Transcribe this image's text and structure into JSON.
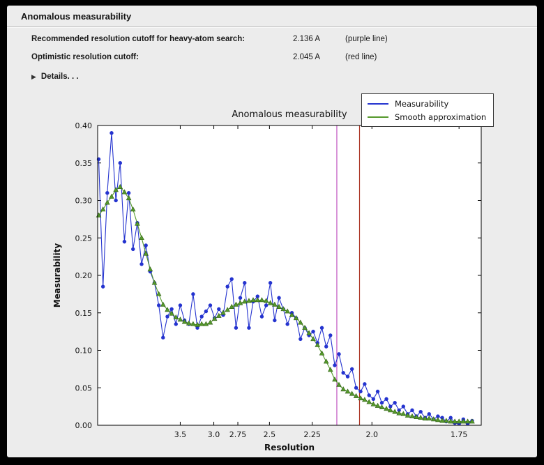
{
  "window": {
    "title": "Anomalous measurability"
  },
  "info": {
    "rows": [
      {
        "label": "Recommended resolution cutoff for heavy-atom search:",
        "value": "2.136 A",
        "note": "(purple line)"
      },
      {
        "label": "Optimistic resolution cutoff:",
        "value": "2.045 A",
        "note": "(red line)"
      }
    ],
    "details_label": "Details. . ."
  },
  "chart_data": {
    "type": "line",
    "title": "Anomalous measurability",
    "xlabel": "Resolution",
    "ylabel": "Measurability",
    "x_scale": "inverse-d-squared",
    "x_range_angstrom": [
      10.5,
      1.7
    ],
    "ylim": [
      0.0,
      0.4
    ],
    "grid": false,
    "legend_position": "upper right outside",
    "x_ticks": [
      3.5,
      3.0,
      2.75,
      2.5,
      2.25,
      2.0,
      1.75
    ],
    "x_tick_labels": [
      "3.5",
      "3.0",
      "2.75",
      "2.5",
      "2.25",
      "2.0",
      "1.75"
    ],
    "y_ticks": [
      0.0,
      0.05,
      0.1,
      0.15,
      0.2,
      0.25,
      0.3,
      0.35,
      0.4
    ],
    "y_tick_labels": [
      "0.00",
      "0.05",
      "0.10",
      "0.15",
      "0.20",
      "0.25",
      "0.30",
      "0.35",
      "0.40"
    ],
    "x_angstrom": [
      10.0,
      8.522,
      7.551,
      6.85,
      6.314,
      5.887,
      5.537,
      5.242,
      4.99,
      4.771,
      4.579,
      4.408,
      4.255,
      4.117,
      3.991,
      3.877,
      3.771,
      3.674,
      3.584,
      3.5,
      3.422,
      3.349,
      3.28,
      3.216,
      3.155,
      3.097,
      3.043,
      2.991,
      2.942,
      2.895,
      2.85,
      2.808,
      2.767,
      2.728,
      2.69,
      2.654,
      2.62,
      2.586,
      2.554,
      2.523,
      2.494,
      2.465,
      2.437,
      2.41,
      2.385,
      2.359,
      2.335,
      2.311,
      2.288,
      2.266,
      2.245,
      2.224,
      2.203,
      2.183,
      2.164,
      2.145,
      2.127,
      2.109,
      2.091,
      2.074,
      2.058,
      2.041,
      2.026,
      2.01,
      1.995,
      1.98,
      1.966,
      1.951,
      1.938,
      1.924,
      1.911,
      1.898,
      1.885,
      1.872,
      1.86,
      1.848,
      1.836,
      1.825,
      1.813,
      1.802,
      1.791,
      1.781,
      1.77,
      1.76,
      1.75,
      1.74,
      1.73,
      1.72
    ],
    "series": [
      {
        "name": "Measurability",
        "color": "#2433cf",
        "marker": "circle",
        "y": [
          0.355,
          0.185,
          0.31,
          0.39,
          0.3,
          0.35,
          0.245,
          0.31,
          0.235,
          0.27,
          0.215,
          0.24,
          0.205,
          0.19,
          0.16,
          0.117,
          0.145,
          0.155,
          0.135,
          0.16,
          0.14,
          0.135,
          0.175,
          0.13,
          0.145,
          0.152,
          0.16,
          0.143,
          0.155,
          0.147,
          0.185,
          0.195,
          0.13,
          0.17,
          0.19,
          0.13,
          0.165,
          0.172,
          0.145,
          0.16,
          0.19,
          0.14,
          0.17,
          0.155,
          0.135,
          0.15,
          0.143,
          0.115,
          0.13,
          0.12,
          0.125,
          0.11,
          0.13,
          0.105,
          0.12,
          0.08,
          0.095,
          0.07,
          0.065,
          0.075,
          0.05,
          0.045,
          0.055,
          0.04,
          0.035,
          0.045,
          0.03,
          0.035,
          0.025,
          0.03,
          0.02,
          0.025,
          0.015,
          0.02,
          0.012,
          0.018,
          0.01,
          0.015,
          0.008,
          0.012,
          0.01,
          0.005,
          0.01,
          0.003,
          0.002,
          0.008,
          0.002,
          0.006
        ]
      },
      {
        "name": "Smooth approximation",
        "color": "#55992b",
        "marker": "triangle",
        "marker_edge": "#2f5e14",
        "y": [
          0.28,
          0.288,
          0.297,
          0.305,
          0.314,
          0.318,
          0.311,
          0.303,
          0.288,
          0.269,
          0.25,
          0.229,
          0.208,
          0.19,
          0.175,
          0.161,
          0.154,
          0.149,
          0.144,
          0.141,
          0.138,
          0.136,
          0.135,
          0.134,
          0.135,
          0.135,
          0.137,
          0.142,
          0.146,
          0.15,
          0.154,
          0.158,
          0.161,
          0.163,
          0.165,
          0.166,
          0.167,
          0.167,
          0.167,
          0.166,
          0.163,
          0.161,
          0.158,
          0.155,
          0.152,
          0.147,
          0.143,
          0.137,
          0.13,
          0.123,
          0.115,
          0.107,
          0.096,
          0.085,
          0.074,
          0.061,
          0.054,
          0.048,
          0.045,
          0.042,
          0.039,
          0.036,
          0.034,
          0.031,
          0.028,
          0.026,
          0.024,
          0.022,
          0.02,
          0.018,
          0.016,
          0.015,
          0.013,
          0.012,
          0.011,
          0.01,
          0.009,
          0.009,
          0.008,
          0.007,
          0.006,
          0.006,
          0.005,
          0.005,
          0.005,
          0.005,
          0.005,
          0.005
        ]
      }
    ],
    "vlines": [
      {
        "x": 2.136,
        "color": "#c055c0",
        "label": "purple line"
      },
      {
        "x": 2.045,
        "color": "#aa3322",
        "label": "red line"
      }
    ]
  }
}
